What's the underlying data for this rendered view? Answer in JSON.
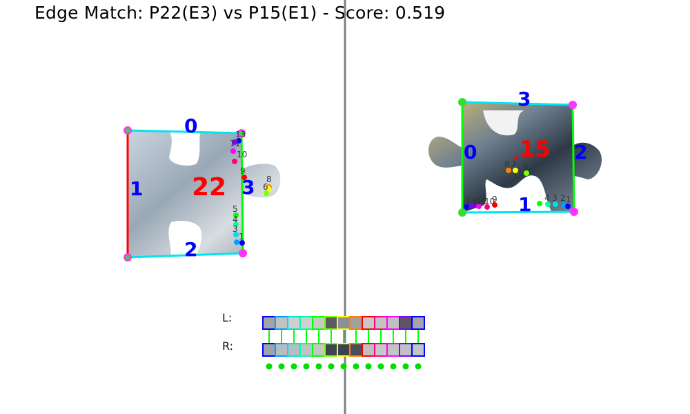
{
  "title": "Edge Match: P22(E3) vs P15(E1) - Score: 0.519",
  "left_piece": {
    "id_label": "22",
    "edge_labels": [
      "0",
      "1",
      "2",
      "3"
    ],
    "point_labels": [
      "13",
      "12",
      "11",
      "10",
      "9",
      "8",
      "7",
      "6",
      "5",
      "4",
      "3",
      "2",
      "1"
    ]
  },
  "right_piece": {
    "id_label": "15",
    "edge_labels": [
      "0",
      "1",
      "2",
      "3"
    ],
    "point_labels_bottom": [
      "13",
      "12",
      "11",
      "10",
      "9"
    ],
    "point_labels_mid": [
      "8",
      "7",
      "6"
    ],
    "point_labels_right": [
      "5",
      "4",
      "3",
      "2",
      "1"
    ]
  },
  "strip": {
    "left_label": "L:",
    "right_label": "R:",
    "count": 13,
    "L_colors": [
      "#a3a3a3",
      "#c2c2c2",
      "#cfcfcf",
      "#cfcfcf",
      "#c8c8c8",
      "#5a5d66",
      "#8c8f96",
      "#a0a0a0",
      "#c8c8c8",
      "#c3c3c3",
      "#c0c0c0",
      "#5b5566",
      "#a6a2b0"
    ],
    "R_colors": [
      "#9aa4ad",
      "#b4bcc4",
      "#b7bcc2",
      "#c0c3c6",
      "#c4c6c8",
      "#3d4450",
      "#3b4350",
      "#4a505a",
      "#bfc0c2",
      "#c7c8ca",
      "#c3c4c6",
      "#bfc0c3",
      "#c3c4c6"
    ],
    "border_colors": [
      "#0000ff",
      "#00a0ff",
      "#00e0e0",
      "#00ffa0",
      "#00ff00",
      "#80ff00",
      "#ffff00",
      "#ff8000",
      "#ff0000",
      "#ff0080",
      "#ff00ff",
      "#8000ff",
      "#0000ff"
    ]
  },
  "colors": {
    "edge_cyan": "#00e5ee",
    "edge_red": "#ff0000",
    "edge_green": "#00ff00",
    "label_blue": "#0000ff",
    "label_red": "#ff0000",
    "corner_green": "#33dd33",
    "corner_magenta": "#ff33ff",
    "divider": "#808080"
  }
}
